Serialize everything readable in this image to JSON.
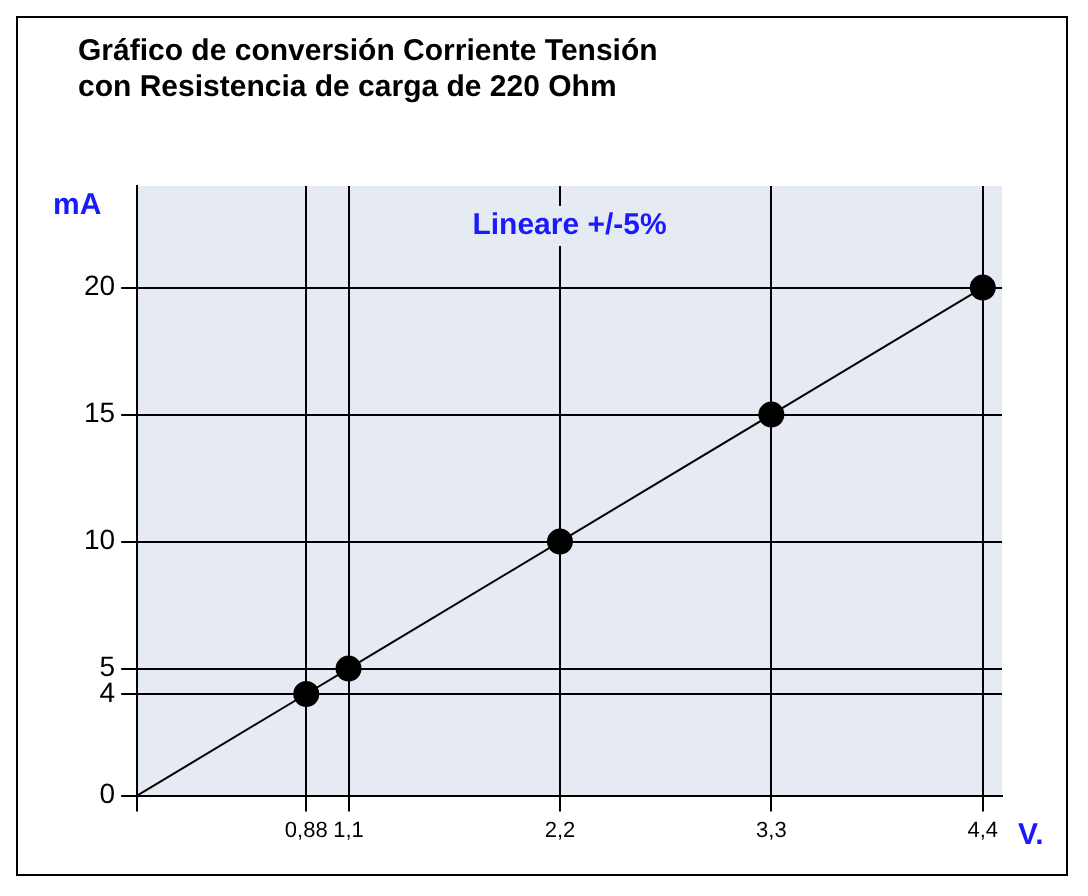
{
  "chart_data": {
    "type": "line",
    "title": "Gráfico de conversión Corriente Tensión\ncon Resistencia de carga de 220 Ohm",
    "xlabel": "V.",
    "ylabel": "mA",
    "series": [
      {
        "color": "#000000",
        "x": [
          0,
          0.88,
          1.1,
          2.2,
          3.3,
          4.4
        ],
        "values": [
          0,
          4,
          5,
          10,
          15,
          20
        ],
        "marker": "none"
      },
      {
        "type": "scatter",
        "color": "#000000",
        "x": [
          0.88,
          1.1,
          2.2,
          3.3,
          4.4
        ],
        "values": [
          4,
          5,
          10,
          15,
          20
        ],
        "marker": "circle"
      }
    ],
    "xlim": [
      0,
      4.5
    ],
    "xticks": [
      {
        "value": 0,
        "label": null
      },
      {
        "value": 0.88,
        "label": "0,88"
      },
      {
        "value": 1.1,
        "label": "1,1"
      },
      {
        "value": 2.2,
        "label": "2,2"
      },
      {
        "value": 3.3,
        "label": "3,3"
      },
      {
        "value": 4.4,
        "label": "4,4"
      }
    ],
    "ylim": [
      0,
      24
    ],
    "yticks": [
      0,
      4,
      5,
      10,
      15,
      20
    ],
    "annotations": [
      "Lineare +/-5%"
    ],
    "grid": true,
    "legend": false
  }
}
